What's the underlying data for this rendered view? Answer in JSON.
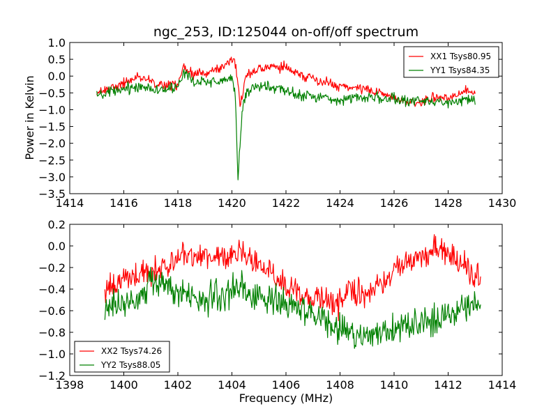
{
  "chart_data": [
    {
      "type": "line",
      "title": "ngc_253, ID:125044 on-off/off spectrum",
      "xlabel": "",
      "ylabel": "Power in Kelvin",
      "xlim": [
        1414,
        1430
      ],
      "ylim": [
        -3.5,
        1.0
      ],
      "xticks": [
        "1414",
        "1416",
        "1418",
        "1420",
        "1422",
        "1424",
        "1426",
        "1428",
        "1430"
      ],
      "yticks": [
        "1.0",
        "0.5",
        "0.0",
        "−0.5",
        "−1.0",
        "−1.5",
        "−2.0",
        "−2.5",
        "−3.0",
        "−3.5"
      ],
      "legend_position": "top-right",
      "grid": false,
      "series": [
        {
          "name": "XX1 Tsys80.95",
          "color": "#ff0000",
          "noise": 0.09,
          "x": [
            1415.0,
            1415.5,
            1416.0,
            1416.5,
            1417.0,
            1417.5,
            1418.0,
            1418.2,
            1418.3,
            1418.6,
            1419.0,
            1419.5,
            1419.9,
            1420.05,
            1420.15,
            1420.22,
            1420.3,
            1420.4,
            1420.5,
            1420.7,
            1421.0,
            1421.5,
            1422.0,
            1422.5,
            1423.0,
            1423.5,
            1424.0,
            1424.5,
            1425.0,
            1425.5,
            1426.0,
            1426.5,
            1427.0,
            1427.5,
            1428.0,
            1428.5,
            1429.0
          ],
          "y": [
            -0.5,
            -0.35,
            -0.2,
            -0.05,
            -0.15,
            -0.25,
            -0.3,
            0.25,
            0.2,
            0.05,
            0.1,
            0.2,
            0.4,
            0.55,
            0.3,
            -0.2,
            -0.9,
            -0.5,
            0.0,
            0.1,
            0.2,
            0.3,
            0.25,
            0.05,
            -0.1,
            -0.2,
            -0.3,
            -0.35,
            -0.4,
            -0.5,
            -0.65,
            -0.75,
            -0.8,
            -0.65,
            -0.6,
            -0.5,
            -0.45
          ]
        },
        {
          "name": "YY1 Tsys84.35",
          "color": "#008000",
          "noise": 0.1,
          "x": [
            1415.0,
            1415.5,
            1416.0,
            1416.5,
            1417.0,
            1417.5,
            1418.0,
            1418.2,
            1418.3,
            1418.6,
            1419.0,
            1419.5,
            1419.9,
            1420.0,
            1420.12,
            1420.22,
            1420.32,
            1420.42,
            1420.5,
            1420.7,
            1421.0,
            1421.5,
            1422.0,
            1422.5,
            1423.0,
            1423.5,
            1424.0,
            1424.5,
            1425.0,
            1425.5,
            1426.0,
            1426.5,
            1427.0,
            1427.5,
            1428.0,
            1428.5,
            1429.0
          ],
          "y": [
            -0.6,
            -0.5,
            -0.4,
            -0.3,
            -0.35,
            -0.4,
            -0.35,
            0.1,
            0.05,
            -0.2,
            -0.15,
            -0.15,
            -0.1,
            0.0,
            -0.5,
            -3.05,
            -1.7,
            -0.8,
            -0.5,
            -0.4,
            -0.3,
            -0.35,
            -0.45,
            -0.55,
            -0.6,
            -0.65,
            -0.7,
            -0.65,
            -0.6,
            -0.65,
            -0.7,
            -0.75,
            -0.7,
            -0.75,
            -0.8,
            -0.75,
            -0.7
          ]
        }
      ]
    },
    {
      "type": "line",
      "title": "",
      "xlabel": "Frequency (MHz)",
      "ylabel": "",
      "xlim": [
        1398,
        1414
      ],
      "ylim": [
        -1.2,
        0.2
      ],
      "xticks": [
        "1398",
        "1400",
        "1402",
        "1404",
        "1406",
        "1408",
        "1410",
        "1412",
        "1414"
      ],
      "yticks": [
        "0.2",
        "0.0",
        "−0.2",
        "−0.4",
        "−0.6",
        "−0.8",
        "−1.0",
        "−1.2"
      ],
      "legend_position": "bottom-left",
      "grid": false,
      "series": [
        {
          "name": "XX2 Tsys74.26",
          "color": "#ff0000",
          "noise": 0.08,
          "x": [
            1399.3,
            1399.7,
            1400.2,
            1400.8,
            1401.5,
            1402.2,
            1403.0,
            1403.8,
            1404.3,
            1404.8,
            1405.4,
            1406.0,
            1406.6,
            1407.2,
            1407.8,
            1408.4,
            1409.0,
            1409.6,
            1410.2,
            1410.8,
            1411.4,
            1411.9,
            1412.4,
            1412.9,
            1413.2
          ],
          "y": [
            -0.4,
            -0.35,
            -0.3,
            -0.25,
            -0.2,
            -0.1,
            -0.1,
            -0.15,
            -0.05,
            -0.15,
            -0.25,
            -0.35,
            -0.45,
            -0.5,
            -0.55,
            -0.4,
            -0.45,
            -0.35,
            -0.2,
            -0.1,
            -0.05,
            -0.05,
            -0.15,
            -0.25,
            -0.3
          ]
        },
        {
          "name": "YY2 Tsys88.05",
          "color": "#008000",
          "noise": 0.09,
          "x": [
            1399.3,
            1399.7,
            1400.2,
            1400.8,
            1401.5,
            1402.2,
            1403.0,
            1403.8,
            1404.3,
            1404.8,
            1405.4,
            1406.0,
            1406.6,
            1407.2,
            1407.8,
            1408.4,
            1409.0,
            1409.6,
            1410.2,
            1410.8,
            1411.4,
            1411.9,
            1412.4,
            1412.9,
            1413.2
          ],
          "y": [
            -0.6,
            -0.55,
            -0.5,
            -0.4,
            -0.35,
            -0.45,
            -0.5,
            -0.45,
            -0.4,
            -0.45,
            -0.5,
            -0.55,
            -0.6,
            -0.65,
            -0.75,
            -0.8,
            -0.85,
            -0.8,
            -0.75,
            -0.7,
            -0.7,
            -0.65,
            -0.6,
            -0.55,
            -0.5
          ]
        }
      ]
    }
  ]
}
